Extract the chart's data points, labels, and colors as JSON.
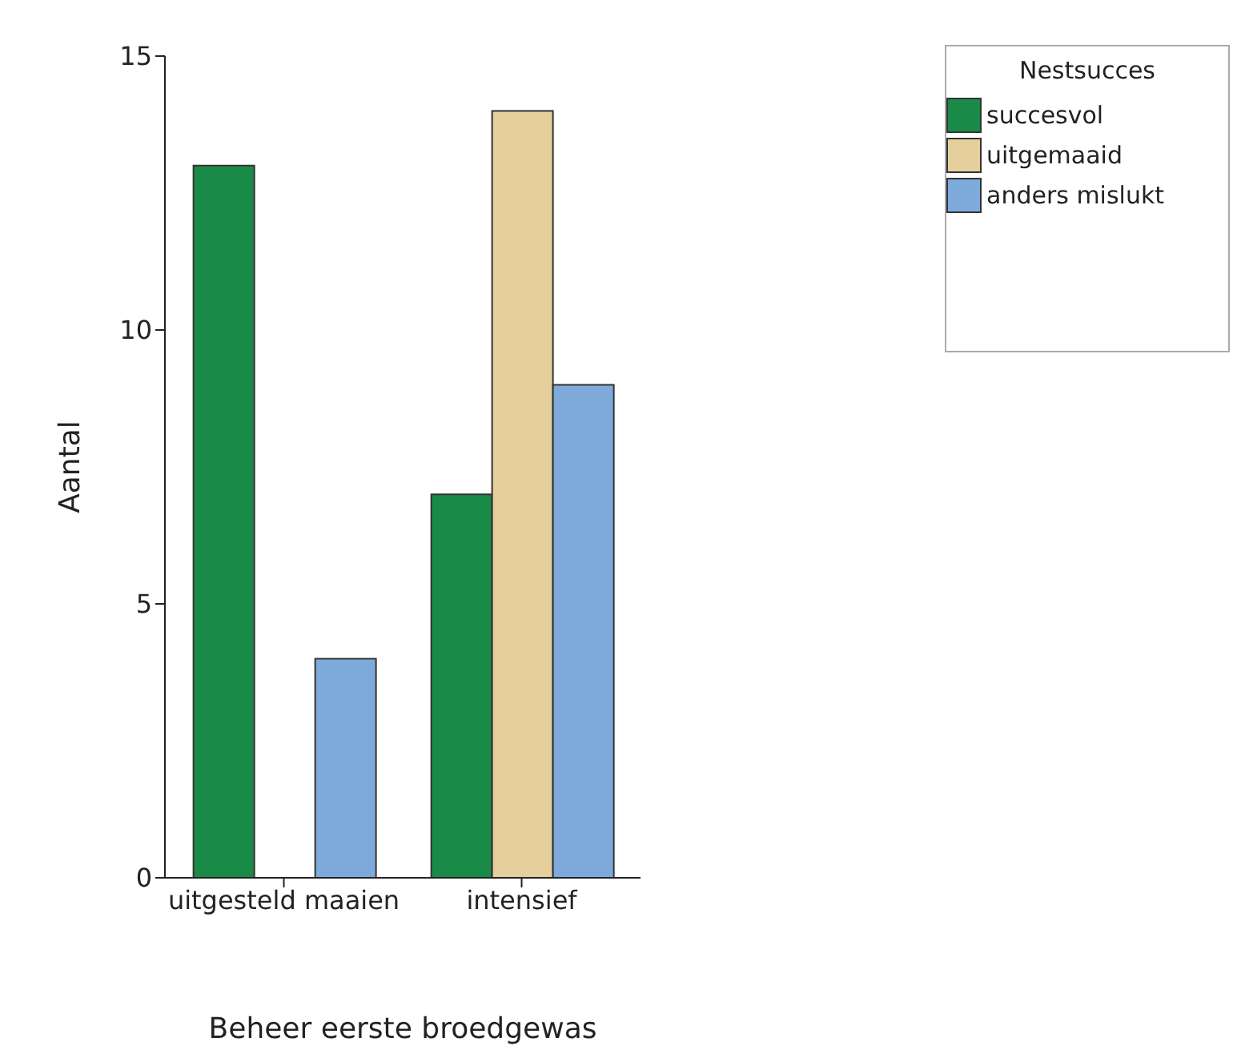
{
  "chart_data": {
    "type": "bar",
    "xlabel": "Beheer eerste broedgewas",
    "ylabel": "Aantal",
    "legend_title": "Nestsucces",
    "categories": [
      "uitgesteld maaien",
      "intensief"
    ],
    "series": [
      {
        "name": "succesvol",
        "color": "#1a8a48",
        "values": [
          13,
          7
        ]
      },
      {
        "name": "uitgemaaid",
        "color": "#e5cf9c",
        "values": [
          0,
          14
        ]
      },
      {
        "name": "anders mislukt",
        "color": "#7eaadb",
        "values": [
          4,
          9
        ]
      }
    ],
    "ylim": [
      0,
      15
    ],
    "yticks": [
      0,
      5,
      10,
      15
    ],
    "grid": false,
    "legend": "top right"
  }
}
